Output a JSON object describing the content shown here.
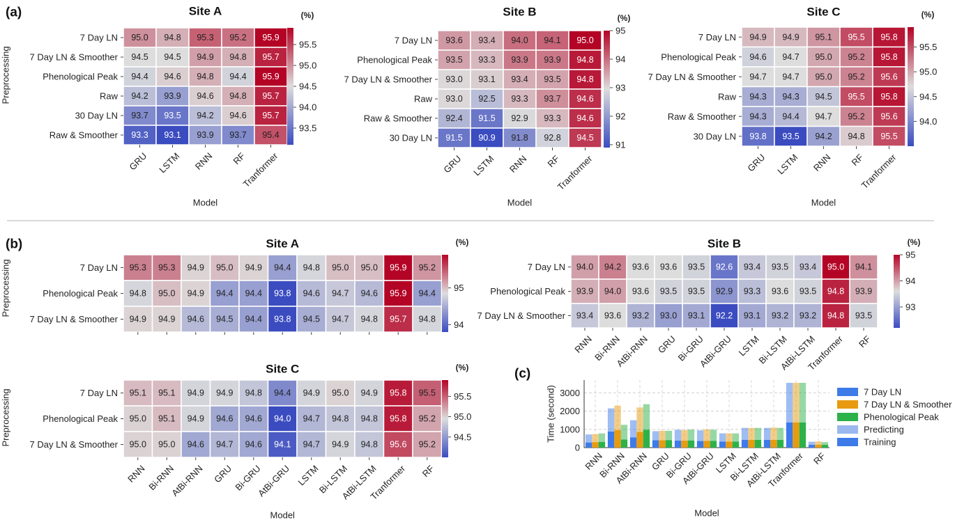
{
  "figure": {
    "panel_a_label": "(a)",
    "panel_b_label": "(b)",
    "panel_c_label": "(c)",
    "ylabel": "Preprocessing",
    "xlabel": "Model",
    "unit_label": "(%)"
  },
  "colors": {
    "low": "#3b4cc0",
    "mid": "#dddddd",
    "high": "#b40426",
    "bar_7day": "#3d7be8",
    "bar_7day_smoother": "#e89b10",
    "bar_pheno": "#2db24a",
    "bar_training": "#3d7be8",
    "bar_predicting": "#9bb8ee"
  },
  "chart_data": [
    {
      "type": "heatmap",
      "id": "a_siteA",
      "title": "Site A",
      "rows": [
        "7 Day LN",
        "7 Day LN & Smoother",
        "Phenological Peak",
        "Raw",
        "30 Day LN",
        "Raw & Smoother"
      ],
      "cols": [
        "GRU",
        "LSTM",
        "RNN",
        "RF",
        "Tranformer"
      ],
      "values": [
        [
          95.0,
          94.8,
          95.3,
          95.2,
          95.9
        ],
        [
          94.5,
          94.5,
          94.9,
          94.8,
          95.7
        ],
        [
          94.4,
          94.6,
          94.8,
          94.4,
          95.9
        ],
        [
          94.2,
          93.9,
          94.6,
          94.8,
          95.7
        ],
        [
          93.7,
          93.5,
          94.2,
          94.6,
          95.7
        ],
        [
          93.3,
          93.1,
          93.9,
          93.7,
          95.4
        ]
      ],
      "vmin": 93.1,
      "vmax": 95.9,
      "cbar_ticks": [
        "95.5",
        "95.0",
        "94.5",
        "94.0",
        "93.5"
      ],
      "cbar_tick_values": [
        95.5,
        95.0,
        94.5,
        94.0,
        93.5
      ]
    },
    {
      "type": "heatmap",
      "id": "a_siteB",
      "title": "Site B",
      "rows": [
        "7 Day LN",
        "Phenological Peak",
        "7 Day LN & Smoother",
        "Raw",
        "Raw & Smoother",
        "30 Day LN"
      ],
      "cols": [
        "GRU",
        "LSTM",
        "RNN",
        "RF",
        "Tranformer"
      ],
      "values": [
        [
          93.6,
          93.4,
          94.0,
          94.1,
          95.0
        ],
        [
          93.5,
          93.3,
          93.9,
          93.9,
          94.8
        ],
        [
          93.0,
          93.1,
          93.4,
          93.5,
          94.8
        ],
        [
          93.0,
          92.5,
          93.3,
          93.7,
          94.6
        ],
        [
          92.4,
          91.5,
          92.9,
          93.3,
          94.6
        ],
        [
          91.5,
          90.9,
          91.8,
          92.8,
          94.5
        ]
      ],
      "vmin": 90.9,
      "vmax": 95.0,
      "cbar_ticks": [
        "95",
        "94",
        "93",
        "92",
        "91"
      ],
      "cbar_tick_values": [
        95,
        94,
        93,
        92,
        91
      ]
    },
    {
      "type": "heatmap",
      "id": "a_siteC",
      "title": "Site C",
      "rows": [
        "7 Day LN",
        "Phenological Peak",
        "7 Day LN & Smoother",
        "Raw",
        "Raw & Smoother",
        "30 Day LN"
      ],
      "cols": [
        "GRU",
        "LSTM",
        "RNN",
        "RF",
        "Tranformer"
      ],
      "values": [
        [
          94.9,
          94.9,
          95.1,
          95.5,
          95.8
        ],
        [
          94.6,
          94.7,
          95.0,
          95.2,
          95.8
        ],
        [
          94.7,
          94.7,
          95.0,
          95.2,
          95.6
        ],
        [
          94.3,
          94.3,
          94.5,
          95.5,
          95.8
        ],
        [
          94.3,
          94.4,
          94.7,
          95.2,
          95.6
        ],
        [
          93.8,
          93.5,
          94.2,
          94.8,
          95.5
        ]
      ],
      "vmin": 93.5,
      "vmax": 95.9,
      "cbar_ticks": [
        "95.5",
        "95.0",
        "94.5",
        "94.0"
      ],
      "cbar_tick_values": [
        95.5,
        95.0,
        94.5,
        94.0
      ]
    },
    {
      "type": "heatmap",
      "id": "b_siteA",
      "title": "Site A",
      "rows": [
        "7 Day LN",
        "Phenological Peak",
        "7 Day LN & Smoother"
      ],
      "cols": [
        "RNN",
        "Bi-RNN",
        "AtBi-RNN",
        "GRU",
        "Bi-GRU",
        "AtBi-GRU",
        "LSTM",
        "Bi-LSTM",
        "AtBi-LSTM",
        "Tranformer",
        "RF"
      ],
      "values": [
        [
          95.3,
          95.3,
          94.9,
          95.0,
          94.9,
          94.4,
          94.8,
          95.0,
          95.0,
          95.9,
          95.2
        ],
        [
          94.8,
          95.0,
          94.9,
          94.4,
          94.4,
          93.8,
          94.6,
          94.7,
          94.6,
          95.9,
          94.4
        ],
        [
          94.9,
          94.9,
          94.6,
          94.5,
          94.4,
          93.8,
          94.5,
          94.7,
          94.8,
          95.7,
          94.8
        ]
      ],
      "vmin": 93.8,
      "vmax": 95.9,
      "cbar_ticks": [
        "95",
        "94"
      ],
      "cbar_tick_values": [
        95,
        94
      ]
    },
    {
      "type": "heatmap",
      "id": "b_siteB",
      "title": "Site B",
      "rows": [
        "7 Day LN",
        "Phenological Peak",
        "7 Day LN & Smoother"
      ],
      "cols": [
        "RNN",
        "Bi-RNN",
        "AtBi-RNN",
        "GRU",
        "Bi-GRU",
        "AtBi-GRU",
        "LSTM",
        "Bi-LSTM",
        "AtBi-LSTM",
        "Tranformer",
        "RF"
      ],
      "values": [
        [
          94.0,
          94.2,
          93.6,
          93.6,
          93.5,
          92.6,
          93.4,
          93.5,
          93.4,
          95.0,
          94.1
        ],
        [
          93.9,
          94.0,
          93.6,
          93.5,
          93.5,
          92.9,
          93.3,
          93.6,
          93.5,
          94.8,
          93.9
        ],
        [
          93.4,
          93.6,
          93.2,
          93.0,
          93.1,
          92.2,
          93.1,
          93.2,
          93.2,
          94.8,
          93.5
        ]
      ],
      "vmin": 92.2,
      "vmax": 95.0,
      "cbar_ticks": [
        "95",
        "94",
        "93"
      ],
      "cbar_tick_values": [
        95,
        94,
        93
      ]
    },
    {
      "type": "heatmap",
      "id": "b_siteC",
      "title": "Site C",
      "rows": [
        "7 Day LN",
        "Phenological Peak",
        "7 Day LN & Smoother"
      ],
      "cols": [
        "RNN",
        "Bi-RNN",
        "AtBi-RNN",
        "GRU",
        "Bi-GRU",
        "AtBi-GRU",
        "LSTM",
        "Bi-LSTM",
        "AtBi-LSTM",
        "Tranformer",
        "RF"
      ],
      "values": [
        [
          95.1,
          95.1,
          94.9,
          94.9,
          94.8,
          94.4,
          94.9,
          95.0,
          94.9,
          95.8,
          95.5
        ],
        [
          95.0,
          95.1,
          94.9,
          94.6,
          94.6,
          94.0,
          94.7,
          94.8,
          94.8,
          95.8,
          95.2
        ],
        [
          95.0,
          95.0,
          94.6,
          94.7,
          94.6,
          94.1,
          94.7,
          94.9,
          94.8,
          95.6,
          95.2
        ]
      ],
      "vmin": 94.0,
      "vmax": 95.9,
      "cbar_ticks": [
        "95.5",
        "95.0",
        "94.5"
      ],
      "cbar_tick_values": [
        95.5,
        95.0,
        94.5
      ]
    },
    {
      "type": "bar",
      "id": "c_time",
      "ylabel": "Time (second)",
      "xlabel": "Model",
      "categories": [
        "RNN",
        "Bi-RNN",
        "AtBi-RNN",
        "GRU",
        "Bi-GRU",
        "AtBi-GRU",
        "LSTM",
        "Bi-LSTM",
        "AtBi-LSTM",
        "Tranformer",
        "RF"
      ],
      "ylim": [
        0,
        3700
      ],
      "yticks": [
        "0",
        "1000",
        "2000",
        "3000"
      ],
      "ytick_values": [
        0,
        1000,
        2000,
        3000
      ],
      "legend": [
        "7 Day LN",
        "7 Day LN & Smoother",
        "Phenological Peak",
        "Predicting",
        "Training"
      ],
      "series": [
        {
          "name": "7 Day LN",
          "training": [
            280,
            880,
            560,
            400,
            380,
            360,
            330,
            420,
            420,
            1380,
            150
          ],
          "total": [
            720,
            2150,
            1500,
            900,
            980,
            950,
            780,
            1080,
            1080,
            3550,
            320
          ]
        },
        {
          "name": "7 Day LN & Smoother",
          "training": [
            300,
            960,
            860,
            400,
            380,
            370,
            330,
            420,
            420,
            1380,
            160
          ],
          "total": [
            740,
            2300,
            2200,
            920,
            960,
            1000,
            780,
            1080,
            1100,
            3550,
            340
          ]
        },
        {
          "name": "Phenological Peak",
          "training": [
            310,
            440,
            980,
            410,
            390,
            370,
            330,
            420,
            420,
            1380,
            150
          ],
          "total": [
            780,
            1250,
            2380,
            920,
            990,
            980,
            780,
            1080,
            1080,
            3550,
            300
          ]
        }
      ]
    }
  ]
}
